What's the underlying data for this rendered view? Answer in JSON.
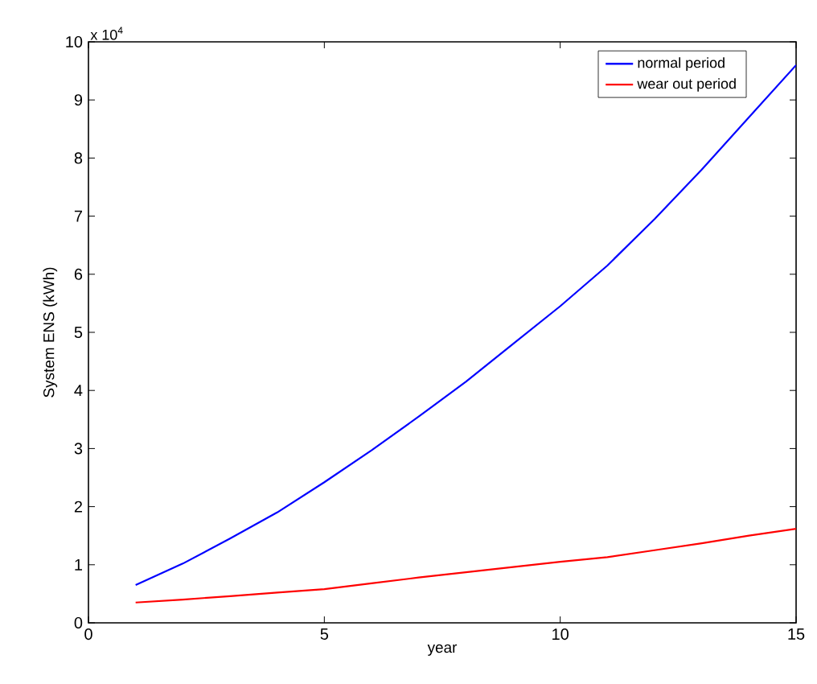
{
  "chart_data": {
    "type": "line",
    "xlabel": "year",
    "ylabel": "System ENS (kWh)",
    "annotations": [
      "x 10$^{4}$"
    ],
    "x": [
      1,
      2,
      3,
      4,
      5,
      6,
      7,
      8,
      9,
      10,
      11,
      12,
      13,
      14,
      15
    ],
    "series": [
      {
        "name": "normal period",
        "color": "#0000ff",
        "values": [
          0.65,
          1.02,
          1.45,
          1.9,
          2.42,
          2.97,
          3.55,
          4.15,
          4.8,
          5.45,
          6.15,
          6.95,
          7.8,
          8.7,
          9.6
        ]
      },
      {
        "name": "wear out period",
        "color": "#ff0000",
        "values": [
          0.35,
          0.4,
          0.46,
          0.52,
          0.58,
          0.68,
          0.78,
          0.87,
          0.96,
          1.05,
          1.13,
          1.25,
          1.37,
          1.5,
          1.62
        ]
      }
    ],
    "xlim": [
      0,
      15
    ],
    "xticks": [
      0,
      5,
      10,
      15
    ],
    "ylim": [
      0,
      10
    ],
    "yticks": [
      0,
      1,
      2,
      3,
      4,
      5,
      6,
      7,
      8,
      9,
      10
    ],
    "grid": false,
    "legend": "top right",
    "marker": "none",
    "line_style": "solid"
  }
}
